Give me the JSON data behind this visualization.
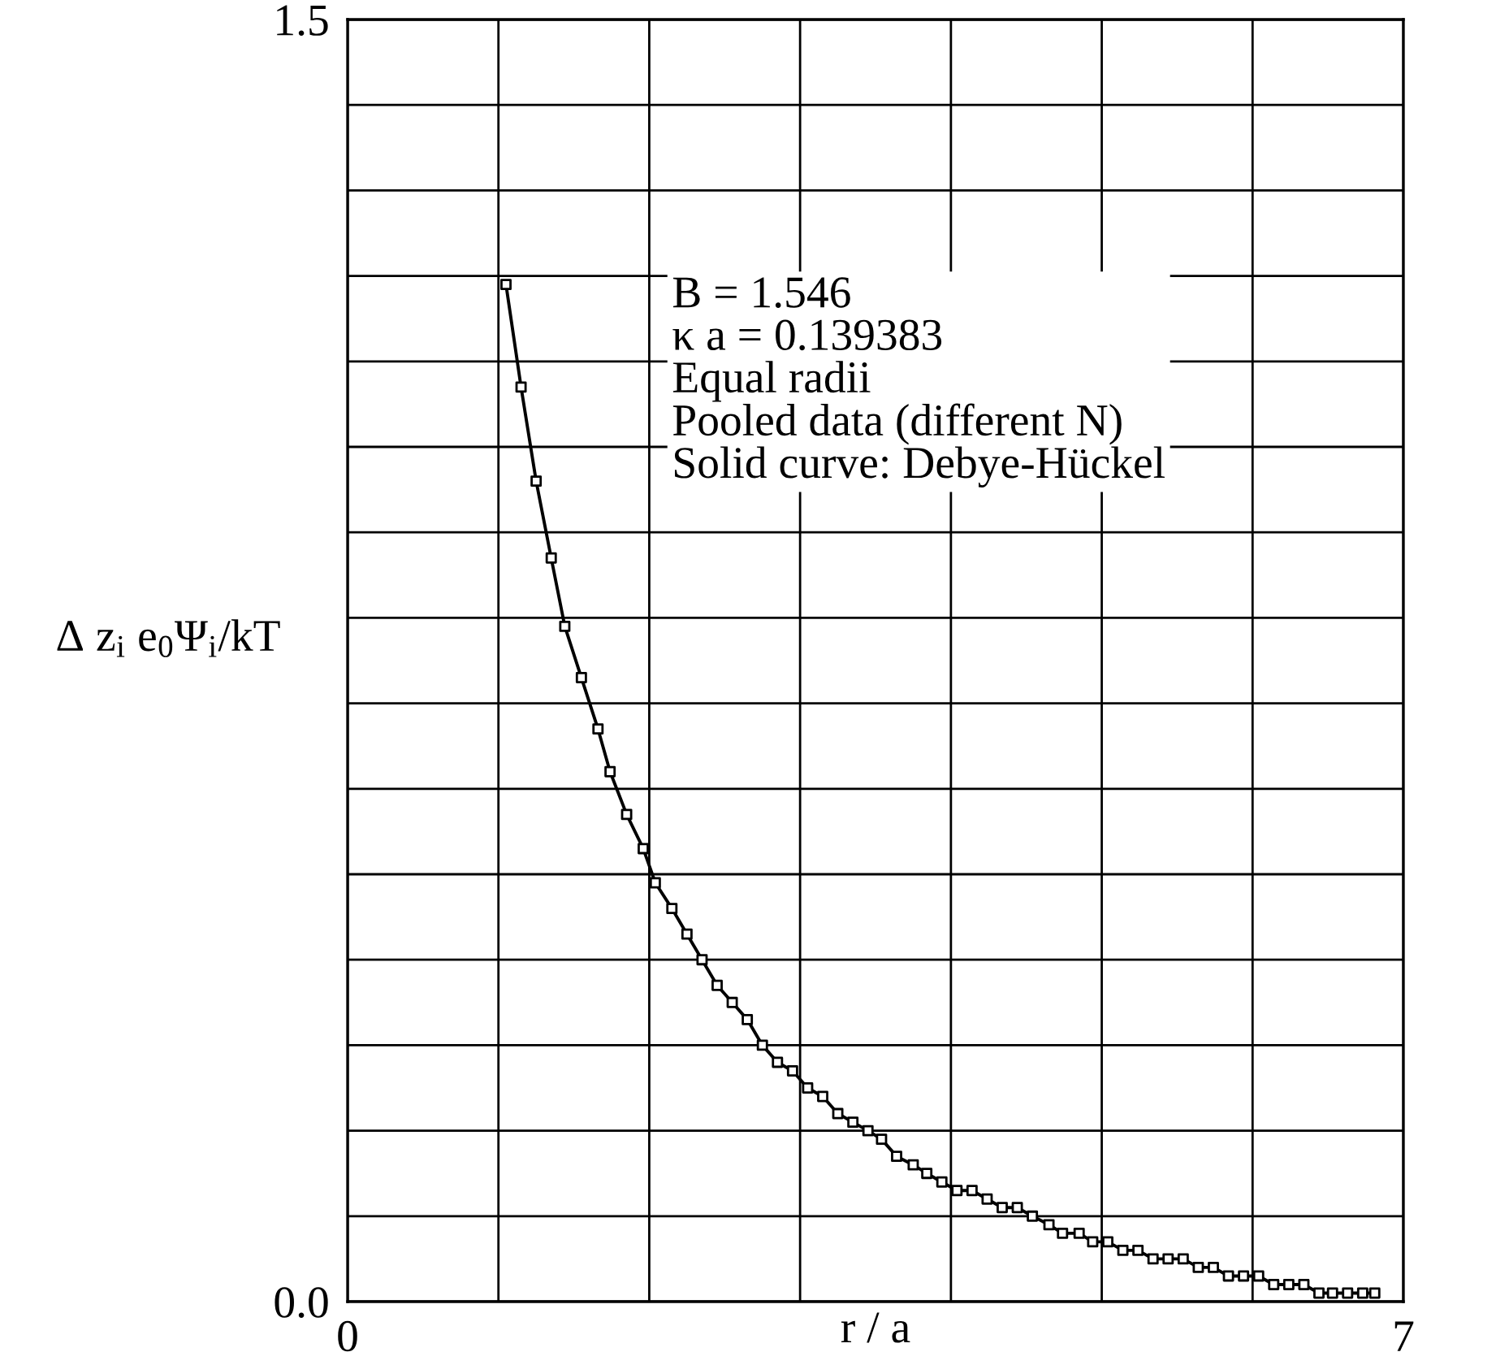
{
  "chart_data": {
    "type": "line",
    "xlabel": "r / a",
    "ylabel": "Δ z$_{i}$ e$_{0}$Ψ$_{i}$/kT",
    "annotations": [
      "B = 1.546",
      "κ a = 0.139383",
      "Equal radii",
      "Pooled data (different N)",
      "Solid curve: Debye-Hückel"
    ],
    "x": [
      1.05,
      1.15,
      1.25,
      1.35,
      1.44,
      1.55,
      1.66,
      1.74,
      1.85,
      1.96,
      2.04,
      2.15,
      2.25,
      2.35,
      2.45,
      2.55,
      2.65,
      2.75,
      2.85,
      2.95,
      3.05,
      3.15,
      3.25,
      3.35,
      3.45,
      3.54,
      3.64,
      3.75,
      3.84,
      3.94,
      4.04,
      4.14,
      4.24,
      4.34,
      4.44,
      4.54,
      4.65,
      4.74,
      4.85,
      4.94,
      5.04,
      5.14,
      5.24,
      5.34,
      5.44,
      5.54,
      5.64,
      5.74,
      5.84,
      5.94,
      6.04,
      6.14,
      6.24,
      6.34,
      6.44,
      6.53,
      6.63,
      6.73,
      6.81
    ],
    "series": [
      {
        "color": "#000000",
        "line_style": "solid",
        "marker": "none",
        "values": [
          1.19,
          1.07,
          0.96,
          0.87,
          0.79,
          0.73,
          0.67,
          0.62,
          0.57,
          0.53,
          0.49,
          0.46,
          0.43,
          0.4,
          0.37,
          0.35,
          0.33,
          0.3,
          0.28,
          0.27,
          0.25,
          0.24,
          0.22,
          0.21,
          0.2,
          0.19,
          0.17,
          0.16,
          0.15,
          0.14,
          0.13,
          0.13,
          0.12,
          0.11,
          0.11,
          0.1,
          0.09,
          0.08,
          0.08,
          0.07,
          0.07,
          0.06,
          0.06,
          0.05,
          0.05,
          0.05,
          0.04,
          0.04,
          0.03,
          0.03,
          0.03,
          0.02,
          0.02,
          0.02,
          0.01,
          0.01,
          0.01,
          0.01,
          0.01
        ]
      },
      {
        "type": "scatter",
        "color": "#000000",
        "marker": "square",
        "values": [
          1.19,
          1.07,
          0.96,
          0.87,
          0.79,
          0.73,
          0.67,
          0.62,
          0.57,
          0.53,
          0.49,
          0.46,
          0.43,
          0.4,
          0.37,
          0.35,
          0.33,
          0.3,
          0.28,
          0.27,
          0.25,
          0.24,
          0.22,
          0.21,
          0.2,
          0.19,
          0.17,
          0.16,
          0.15,
          0.14,
          0.13,
          0.13,
          0.12,
          0.11,
          0.11,
          0.1,
          0.09,
          0.08,
          0.08,
          0.07,
          0.07,
          0.06,
          0.06,
          0.05,
          0.05,
          0.05,
          0.04,
          0.04,
          0.03,
          0.03,
          0.03,
          0.02,
          0.02,
          0.02,
          0.01,
          0.01,
          0.01,
          0.01,
          0.01
        ]
      }
    ],
    "xlim": [
      0,
      7
    ],
    "ylim": [
      0,
      1.5
    ],
    "xticks": [
      0,
      {
        "value": 1,
        "label": null
      },
      {
        "value": 2,
        "label": null
      },
      {
        "value": 3,
        "label": null
      },
      {
        "value": 4,
        "label": null
      },
      {
        "value": 5,
        "label": null
      },
      {
        "value": 6,
        "label": null
      },
      7
    ],
    "yticks": [
      {
        "value": 0,
        "label": "0.0"
      },
      {
        "value": 0.1,
        "label": null
      },
      {
        "value": 0.2,
        "label": null
      },
      {
        "value": 0.3,
        "label": null
      },
      {
        "value": 0.4,
        "label": null
      },
      {
        "value": 0.5,
        "label": null
      },
      {
        "value": 0.6,
        "label": null
      },
      {
        "value": 0.7,
        "label": null
      },
      {
        "value": 0.8,
        "label": null
      },
      {
        "value": 0.9,
        "label": null
      },
      {
        "value": 1.0,
        "label": null
      },
      {
        "value": 1.1,
        "label": null
      },
      {
        "value": 1.2,
        "label": null
      },
      {
        "value": 1.3,
        "label": null
      },
      {
        "value": 1.4,
        "label": null
      },
      1.5
    ],
    "grid": true,
    "legend": false
  }
}
